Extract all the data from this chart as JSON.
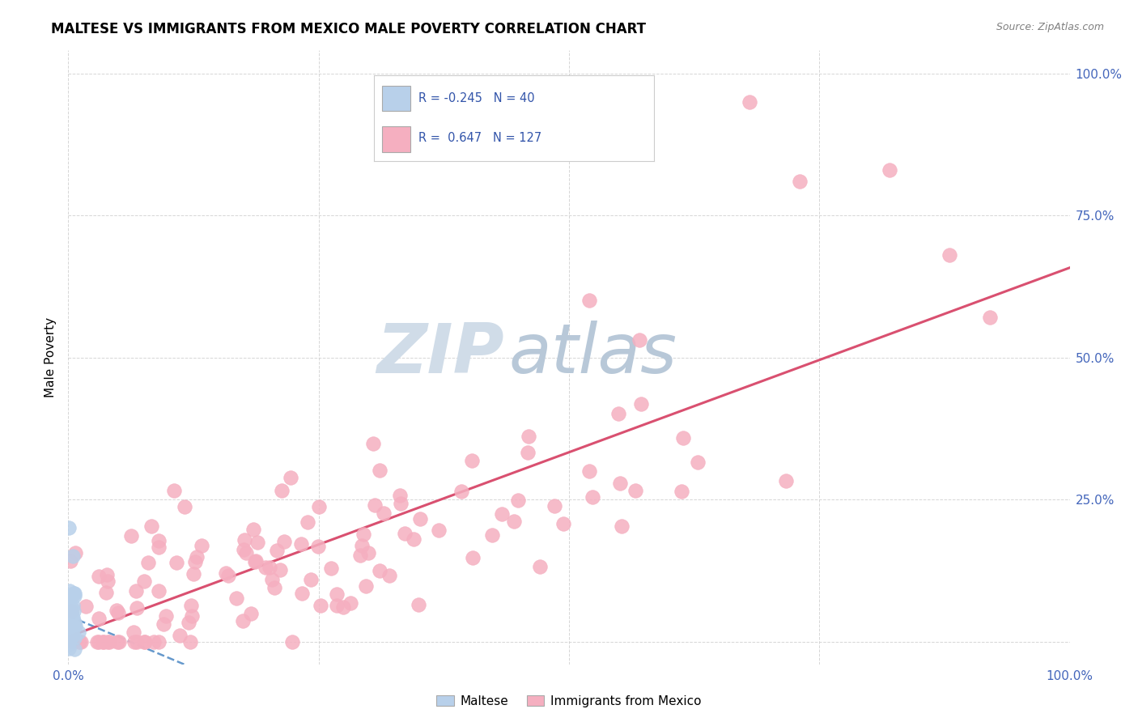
{
  "title": "MALTESE VS IMMIGRANTS FROM MEXICO MALE POVERTY CORRELATION CHART",
  "source": "Source: ZipAtlas.com",
  "ylabel": "Male Poverty",
  "xlim": [
    0,
    1
  ],
  "ylim": [
    0,
    1
  ],
  "xtick_labels": [
    "0.0%",
    "",
    "",
    "",
    "100.0%"
  ],
  "ytick_labels": [
    "",
    "25.0%",
    "50.0%",
    "75.0%",
    "100.0%"
  ],
  "maltese_R": -0.245,
  "maltese_N": 40,
  "mexico_R": 0.647,
  "mexico_N": 127,
  "maltese_color": "#b8d0ea",
  "mexico_color": "#f5afc0",
  "maltese_edge_color": "#88aacc",
  "mexico_edge_color": "#e080a0",
  "maltese_line_color": "#6699cc",
  "mexico_line_color": "#d95070",
  "legend_label_maltese": "Maltese",
  "legend_label_mexico": "Immigrants from Mexico",
  "title_fontsize": 12,
  "tick_label_color": "#4466bb",
  "watermark_zip_color": "#d0dce8",
  "watermark_atlas_color": "#b8c8d8",
  "legend_box_color": "#eef2f8",
  "legend_text_color": "#3355aa"
}
